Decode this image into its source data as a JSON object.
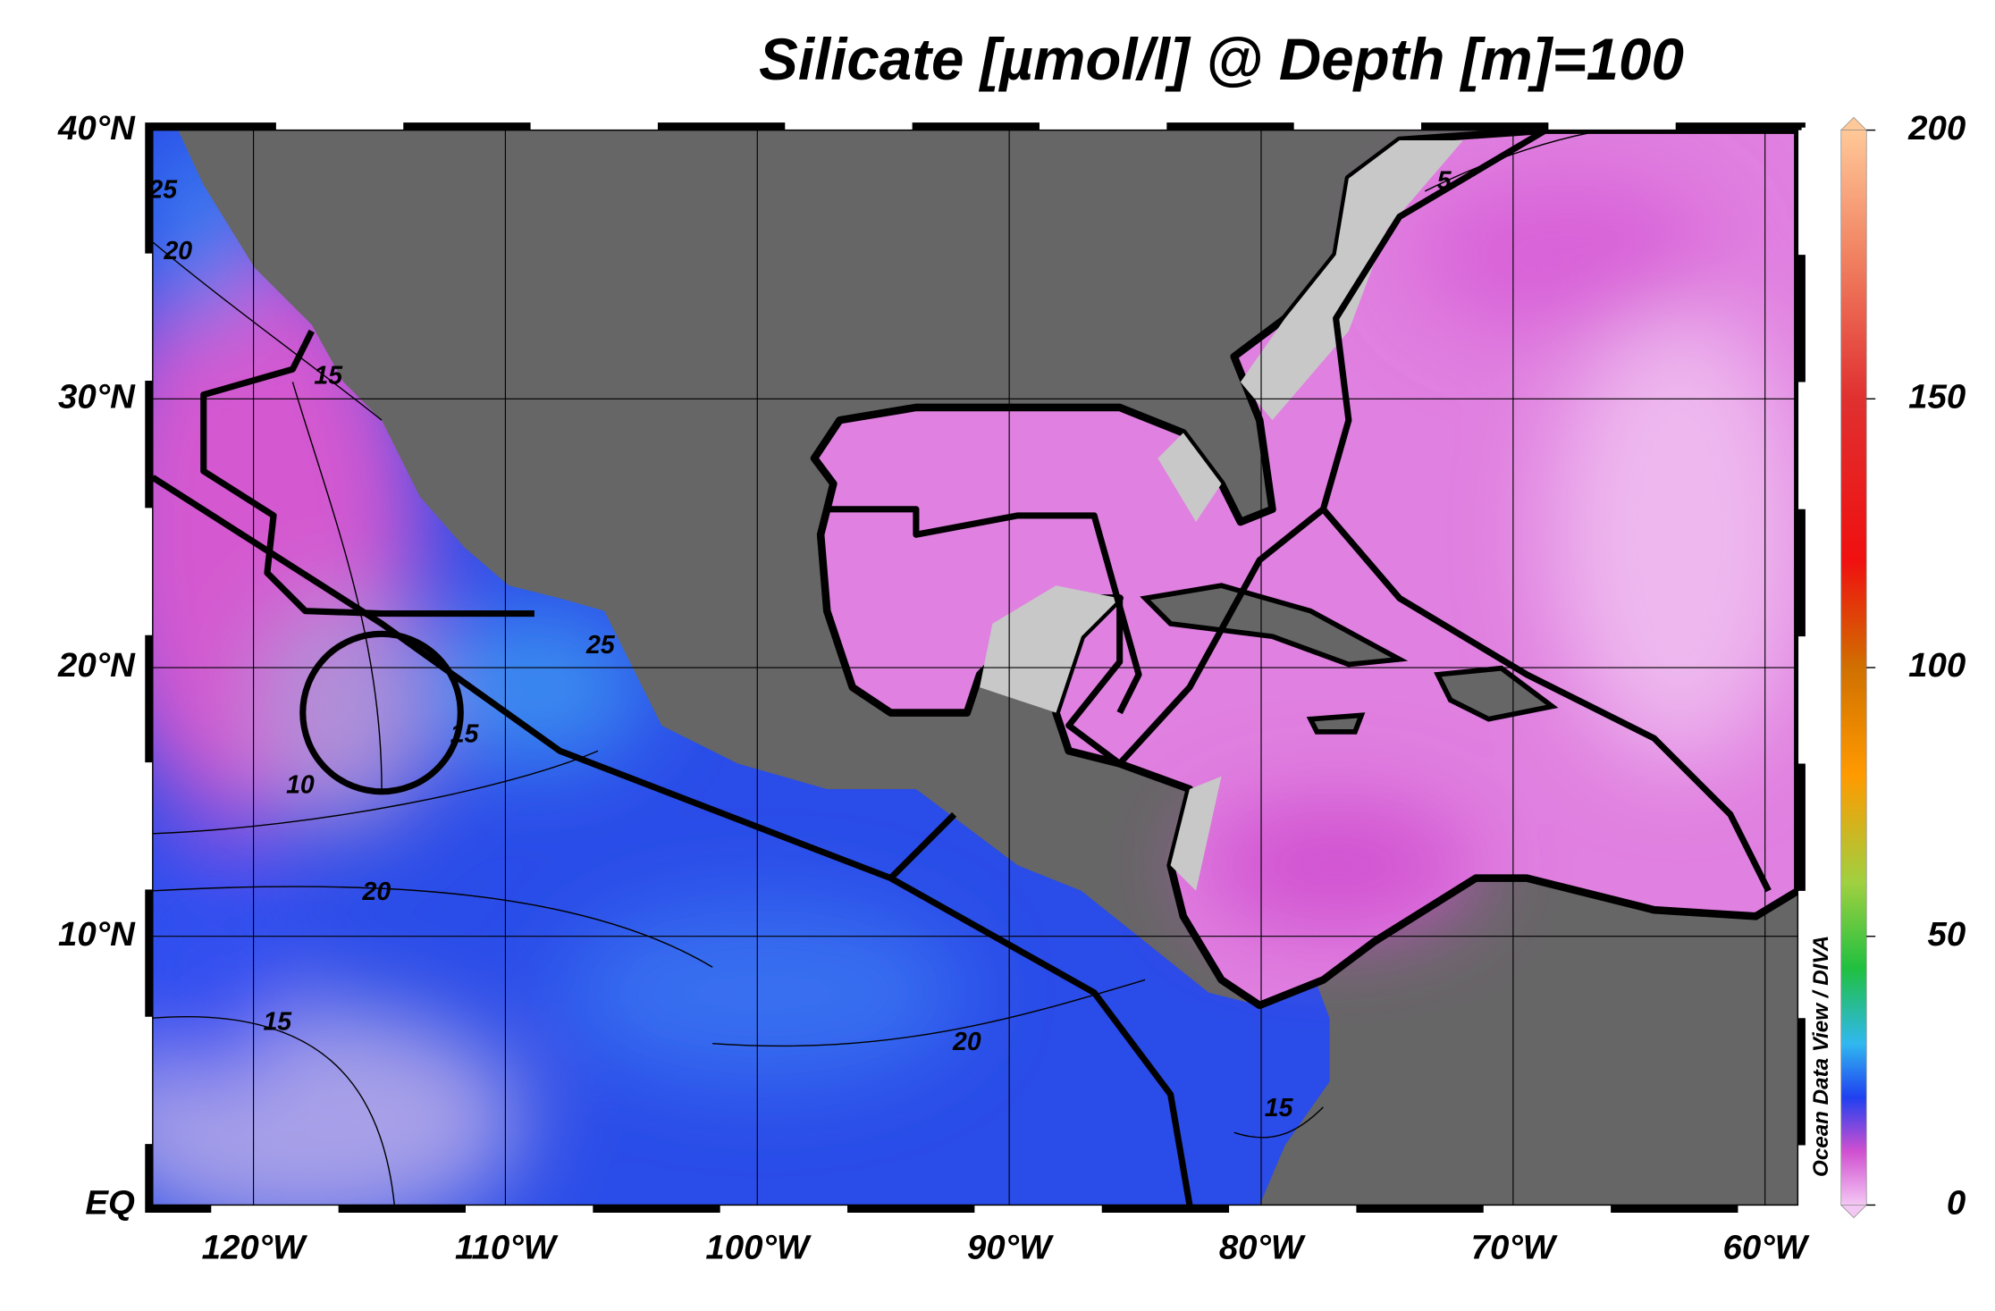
{
  "title": "Silicate [µmol/l] @ Depth [m]=100",
  "map": {
    "lonlim": [
      -124,
      -58.7
    ],
    "latlim": [
      0,
      40
    ],
    "lat_ticks": [
      {
        "value": 40,
        "label": "40°N"
      },
      {
        "value": 30,
        "label": "30°N"
      },
      {
        "value": 20,
        "label": "20°N"
      },
      {
        "value": 10,
        "label": "10°N"
      },
      {
        "value": 0,
        "label": "EQ"
      }
    ],
    "lon_ticks": [
      {
        "value": -120,
        "label": "120°W"
      },
      {
        "value": -110,
        "label": "110°W"
      },
      {
        "value": -100,
        "label": "100°W"
      },
      {
        "value": -90,
        "label": "90°W"
      },
      {
        "value": -80,
        "label": "80°W"
      },
      {
        "value": -70,
        "label": "70°W"
      },
      {
        "value": -60,
        "label": "60°W"
      }
    ],
    "contour_labels": [
      25,
      20,
      15,
      10,
      20,
      15,
      20,
      15,
      5,
      25,
      15
    ]
  },
  "colorbar": {
    "range": [
      0,
      200
    ],
    "ticks": [
      0,
      50,
      100,
      150,
      200
    ]
  },
  "credit": "Ocean Data View / DIVA"
}
